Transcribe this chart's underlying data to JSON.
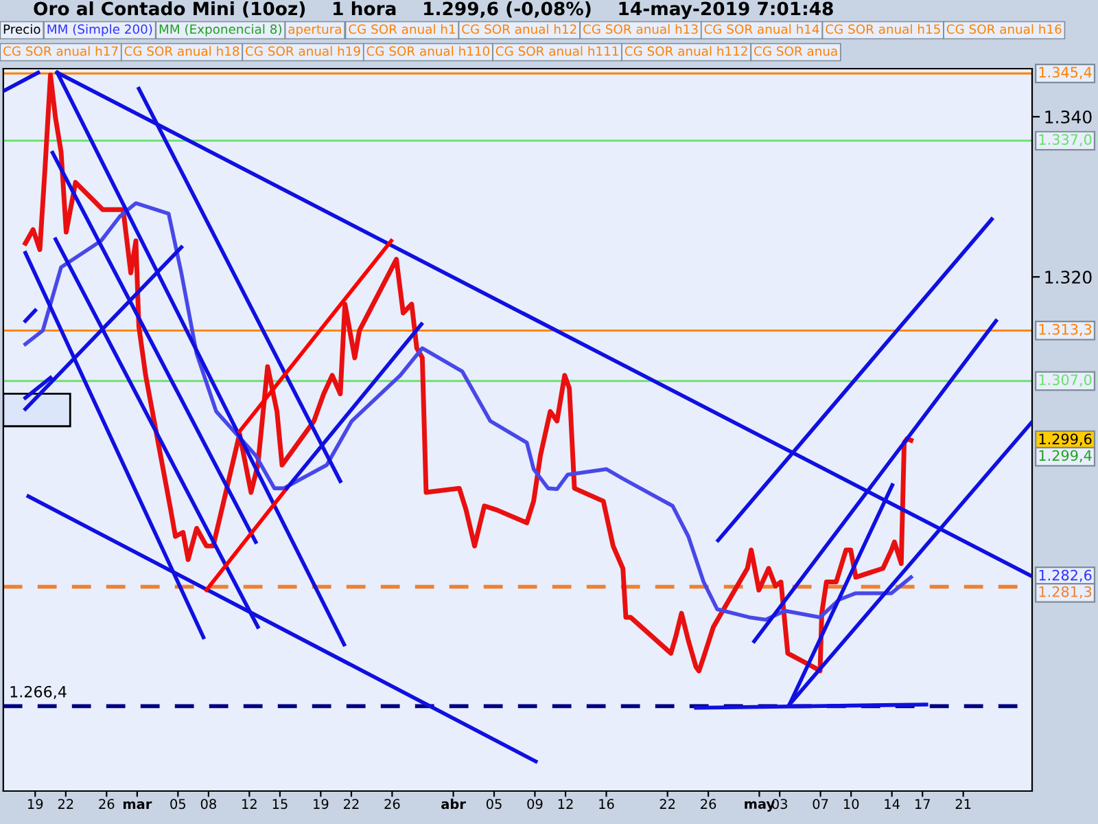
{
  "chart_data": {
    "type": "line",
    "title": "Oro al Contado Mini (10oz)    1 hora    1.299,6 (-0,08%)    14-may-2019 7:01:48",
    "xlim": [
      "2019-02-15T21:00",
      "2019-05-27T18:00"
    ],
    "ylim": [
      1255.8,
      1346
    ],
    "xticks": [
      {
        "value": "2019-02-19",
        "label": "19"
      },
      {
        "value": "2019-02-22",
        "label": "22"
      },
      {
        "value": "2019-02-26",
        "label": "26"
      },
      {
        "value": "2019-03-01",
        "label": "mar"
      },
      {
        "value": "2019-03-05",
        "label": "05"
      },
      {
        "value": "2019-03-08",
        "label": "08"
      },
      {
        "value": "2019-03-12",
        "label": "12"
      },
      {
        "value": "2019-03-15",
        "label": "15"
      },
      {
        "value": "2019-03-19",
        "label": "19"
      },
      {
        "value": "2019-03-22",
        "label": "22"
      },
      {
        "value": "2019-03-26",
        "label": "26"
      },
      {
        "value": "2019-04-01",
        "label": "abr"
      },
      {
        "value": "2019-04-05",
        "label": "05"
      },
      {
        "value": "2019-04-09",
        "label": "09"
      },
      {
        "value": "2019-04-12",
        "label": "12"
      },
      {
        "value": "2019-04-16",
        "label": "16"
      },
      {
        "value": "2019-04-22",
        "label": "22"
      },
      {
        "value": "2019-04-26",
        "label": "26"
      },
      {
        "value": "2019-05-01",
        "label": "may"
      },
      {
        "value": "2019-05-03",
        "label": "03"
      },
      {
        "value": "2019-05-07",
        "label": "07"
      },
      {
        "value": "2019-05-10",
        "label": "10"
      },
      {
        "value": "2019-05-14",
        "label": "14"
      },
      {
        "value": "2019-05-17",
        "label": "17"
      },
      {
        "value": "2019-05-21",
        "label": "21"
      }
    ],
    "yticks": [
      {
        "value": 1320,
        "label": "1.320"
      },
      {
        "value": 1340,
        "label": "1.340"
      }
    ],
    "grid": false,
    "legend": false,
    "series": [
      {
        "color": "#e81010",
        "x": [
          "2019-02-18T01:00",
          "2019-02-18T19:00",
          "2019-02-19T11:00",
          "2019-02-19T23:00",
          "2019-02-20T12:00",
          "2019-02-21T00:00",
          "2019-02-21T13:00",
          "2019-02-22T01:00",
          "2019-02-22T23:00",
          "2019-02-25T15:00",
          "2019-02-26T10:00",
          "2019-02-27T15:00",
          "2019-02-28T09:00",
          "2019-02-28T21:00",
          "2019-03-01T04:00",
          "2019-03-01T20:00",
          "2019-03-04T07:00",
          "2019-03-04T18:00",
          "2019-03-05T12:00",
          "2019-03-06T00:00",
          "2019-03-06T20:00",
          "2019-03-07T19:00",
          "2019-03-08T11:00",
          "2019-03-11T01:00",
          "2019-03-12T04:00",
          "2019-03-12T20:00",
          "2019-03-13T19:00",
          "2019-03-14T17:00",
          "2019-03-15T05:00",
          "2019-03-18T08:00",
          "2019-03-19T07:00",
          "2019-03-20T03:00",
          "2019-03-20T22:00",
          "2019-03-21T09:00",
          "2019-03-22T08:00",
          "2019-03-22T19:00",
          "2019-03-26T10:00",
          "2019-03-27T02:00",
          "2019-03-27T22:00",
          "2019-03-28T10:00",
          "2019-03-28T23:00",
          "2019-03-29T08:00",
          "2019-04-01T14:00",
          "2019-04-02T06:00",
          "2019-04-03T02:00",
          "2019-04-04T01:00",
          "2019-04-05T06:00",
          "2019-04-08T05:00",
          "2019-04-08T21:00",
          "2019-04-09T13:00",
          "2019-04-10T12:00",
          "2019-04-11T04:00",
          "2019-04-11T22:00",
          "2019-04-12T09:00",
          "2019-04-12T21:00",
          "2019-04-15T17:00",
          "2019-04-16T16:00",
          "2019-04-17T15:00",
          "2019-04-17T22:00",
          "2019-04-18T09:00",
          "2019-04-22T08:00",
          "2019-04-22T19:00",
          "2019-04-23T09:00",
          "2019-04-24T01:00",
          "2019-04-24T19:00",
          "2019-04-25T02:00",
          "2019-04-25T13:00",
          "2019-04-26T12:00",
          "2019-04-29T20:00",
          "2019-04-30T05:00",
          "2019-04-30T23:00",
          "2019-05-01T22:00",
          "2019-05-02T14:00",
          "2019-05-03T03:00",
          "2019-05-03T19:00",
          "2019-05-06T07:00",
          "2019-05-06T23:00",
          "2019-05-07T03:00",
          "2019-05-07T14:00",
          "2019-05-08T13:00",
          "2019-05-09T12:00",
          "2019-05-09T23:00",
          "2019-05-10T11:00",
          "2019-05-13T03:00",
          "2019-05-13T23:00",
          "2019-05-14T06:00",
          "2019-05-14T22:00",
          "2019-05-15T05:00",
          "2019-05-15T12:00",
          "2019-05-15T21:00"
        ],
        "values": [
          1324.2,
          1325.9,
          1323.4,
          1333.4,
          1345.2,
          1339.8,
          1335.6,
          1325.6,
          1331.8,
          1328.4,
          1328.4,
          1328.4,
          1320.5,
          1324.5,
          1313.8,
          1307.7,
          1290.9,
          1287.6,
          1288.1,
          1284.7,
          1288.6,
          1286.4,
          1286.4,
          1300.4,
          1293.1,
          1296.5,
          1308.8,
          1303.2,
          1296.5,
          1302.0,
          1305.4,
          1307.7,
          1305.4,
          1316.6,
          1309.9,
          1313.3,
          1322.2,
          1315.5,
          1316.6,
          1311.1,
          1309.9,
          1293.1,
          1293.6,
          1290.9,
          1286.4,
          1291.4,
          1290.9,
          1289.3,
          1292.0,
          1297.7,
          1303.2,
          1302.0,
          1307.7,
          1306.1,
          1293.6,
          1292.0,
          1286.4,
          1283.6,
          1277.5,
          1277.5,
          1273.0,
          1275.0,
          1278.0,
          1274.6,
          1271.3,
          1270.8,
          1272.5,
          1276.3,
          1283.6,
          1285.9,
          1280.9,
          1283.6,
          1281.4,
          1281.9,
          1273.0,
          1271.3,
          1270.8,
          1278.0,
          1281.9,
          1281.9,
          1285.9,
          1285.9,
          1282.5,
          1283.6,
          1285.9,
          1286.9,
          1284.2,
          1299.3,
          1299.8,
          1299.6
        ]
      },
      {
        "color": "#4848e8",
        "x": [
          "2019-02-18T01:00",
          "2019-02-19T18:00",
          "2019-02-21T13:00",
          "2019-02-25T11:00",
          "2019-02-27T08:00",
          "2019-02-28T21:00",
          "2019-03-04T02:00",
          "2019-03-05T08:00",
          "2019-03-06T20:00",
          "2019-03-08T18:00",
          "2019-03-12T15:00",
          "2019-03-14T11:00",
          "2019-03-15T09:00",
          "2019-03-19T14:00",
          "2019-03-22T01:00",
          "2019-03-26T19:00",
          "2019-03-28T23:00",
          "2019-04-01T21:00",
          "2019-04-04T15:00",
          "2019-04-08T05:00",
          "2019-04-08T21:00",
          "2019-04-10T07:00",
          "2019-04-11T04:00",
          "2019-04-12T05:00",
          "2019-04-16T00:00",
          "2019-04-17T15:00",
          "2019-04-22T12:00",
          "2019-04-24T01:00",
          "2019-04-25T13:00",
          "2019-04-26T21:00",
          "2019-04-30T00:00",
          "2019-05-01T15:00",
          "2019-05-03T12:00",
          "2019-05-06T23:00",
          "2019-05-08T20:00",
          "2019-05-10T11:00",
          "2019-05-13T23:00",
          "2019-05-15T21:00"
        ],
        "values": [
          1311.6,
          1313.3,
          1321.2,
          1324.5,
          1327.6,
          1329.2,
          1327.9,
          1320.5,
          1310.4,
          1303.2,
          1297.7,
          1293.6,
          1293.6,
          1296.5,
          1302.0,
          1307.7,
          1311.1,
          1308.2,
          1302.0,
          1299.3,
          1296.0,
          1293.6,
          1293.5,
          1295.3,
          1296.0,
          1294.8,
          1291.4,
          1287.6,
          1281.9,
          1278.5,
          1277.5,
          1277.2,
          1278.3,
          1277.5,
          1279.7,
          1280.5,
          1280.5,
          1282.5
        ]
      },
      {
        "color": "#1010e0",
        "x": [
          "2019-02-21T04:00",
          "2019-05-27T18:00"
        ],
        "values": [
          1345.5,
          1282.6
        ]
      },
      {
        "color": "#1010e0",
        "x": [
          "2019-02-15T21:00",
          "2019-02-19T07:00"
        ],
        "values": [
          1343.2,
          1345.5
        ]
      },
      {
        "color": "#1010e0",
        "x": [
          "2019-02-18T01:00",
          "2019-03-07T12:00"
        ],
        "values": [
          1323.0,
          1275.0
        ]
      },
      {
        "color": "#1010e0",
        "x": [
          "2019-02-21T00:00",
          "2019-03-12T20:00"
        ],
        "values": [
          1324.7,
          1276.3
        ]
      },
      {
        "color": "#1010e0",
        "x": [
          "2019-02-20T17:00",
          "2019-03-12T15:00"
        ],
        "values": [
          1335.5,
          1286.9
        ]
      },
      {
        "color": "#1010e0",
        "x": [
          "2019-02-21T04:00",
          "2019-03-21T07:00"
        ],
        "values": [
          1345.5,
          1274.1
        ]
      },
      {
        "color": "#1010e0",
        "x": [
          "2019-03-01T04:00",
          "2019-03-20T22:00"
        ],
        "values": [
          1343.5,
          1294.5
        ]
      },
      {
        "color": "#1010e0",
        "x": [
          "2019-02-18T08:00",
          "2019-04-09T02:00"
        ],
        "values": [
          1292.6,
          1259.5
        ]
      },
      {
        "color": "#1010e0",
        "x": [
          "2019-02-18T01:00",
          "2019-03-05T08:00"
        ],
        "values": [
          1303.5,
          1323.7
        ]
      },
      {
        "color": "#1010e0",
        "x": [
          "2019-02-18T01:00",
          "2019-02-20T12:00"
        ],
        "values": [
          1304.9,
          1307.4
        ]
      },
      {
        "color": "#1010e0",
        "x": [
          "2019-02-18T01:00",
          "2019-02-19T00:00"
        ],
        "values": [
          1314.5,
          1315.8
        ]
      },
      {
        "color": "#ff0000",
        "x": [
          "2019-03-11T01:00",
          "2019-03-25T22:00"
        ],
        "values": [
          1300.7,
          1324.5
        ]
      },
      {
        "color": "#ff0000",
        "x": [
          "2019-03-07T19:00",
          "2019-03-15T16:00"
        ],
        "values": [
          1280.9,
          1293.6
        ]
      },
      {
        "color": "#1010e0",
        "x": [
          "2019-03-15T16:00",
          "2019-03-28T21:00"
        ],
        "values": [
          1293.6,
          1314.1
        ]
      },
      {
        "color": "#1010e0",
        "x": [
          "2019-04-26T23:00",
          "2019-05-23T19:00"
        ],
        "values": [
          1287.1,
          1327.2
        ]
      },
      {
        "color": "#1010e0",
        "x": [
          "2019-04-30T12:00",
          "2019-05-24T05:00"
        ],
        "values": [
          1274.5,
          1314.5
        ]
      },
      {
        "color": "#1010e0",
        "x": [
          "2019-05-03T23:00",
          "2019-05-27T18:00"
        ],
        "values": [
          1266.6,
          1301.9
        ]
      },
      {
        "color": "#1010e0",
        "x": [
          "2019-05-03T23:00",
          "2019-05-14T01:00"
        ],
        "values": [
          1266.6,
          1294.0
        ]
      },
      {
        "color": "#1010e0",
        "x": [
          "2019-04-24T19:00",
          "2019-05-17T09:00"
        ],
        "values": [
          1266.2,
          1266.6
        ]
      }
    ],
    "ref_lines": [
      {
        "axis": "y",
        "value": 1345.4,
        "label": "1.345,4",
        "color": "#ff8000",
        "line_style": "solid"
      },
      {
        "axis": "y",
        "value": 1337.0,
        "label": "1.337,0",
        "color": "#66e066",
        "line_style": "solid"
      },
      {
        "axis": "y",
        "value": 1313.3,
        "label": "1.313,3",
        "color": "#ff8000",
        "line_style": "solid"
      },
      {
        "axis": "y",
        "value": 1307.0,
        "label": "1.307,0",
        "color": "#66e066",
        "line_style": "solid"
      },
      {
        "axis": "y",
        "value": 1281.3,
        "label": "1.281,3",
        "color": "#f08030",
        "line_style": "dashed"
      },
      {
        "axis": "y",
        "value": 1266.4,
        "label": "1.266,4",
        "color": "#000080",
        "line_style": "dashed"
      }
    ],
    "annotations": [
      "Precio",
      "MM (Simple 200)",
      "MM (Exponencial 8)",
      "apertura",
      "CG SOR anual h1",
      "CG SOR anual h12",
      "CG SOR anual h13",
      "CG SOR anual h14",
      "CG SOR anual h15",
      "CG SOR anual h16",
      "CG SOR anual h17",
      "CG SOR anual h18",
      "CG SOR anual h19",
      "CG SOR anual h110",
      "CG SOR anual h111",
      "CG SOR anual h112",
      "CG SOR anua",
      {
        "text": "1.282,6",
        "x": "2019-05-27T18:00",
        "y": 1282.6
      },
      "1.299,6",
      "1.299,4"
    ]
  }
}
